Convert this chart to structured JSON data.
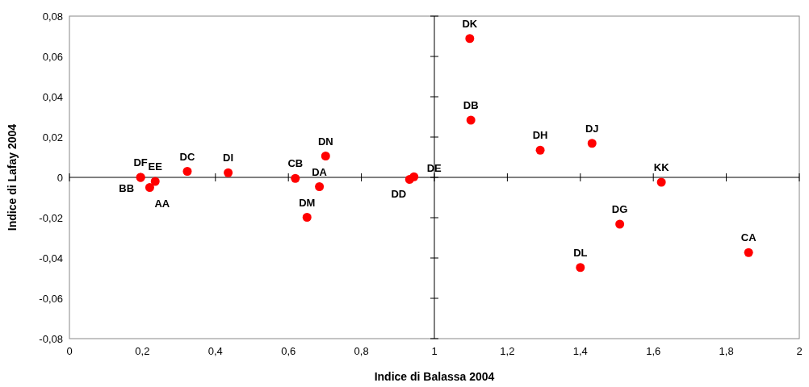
{
  "chart_data": {
    "type": "scatter",
    "xlabel": "Indice di Balassa 2004",
    "ylabel": "Indice di Lafay 2004",
    "xlim": [
      0,
      2
    ],
    "ylim": [
      -0.08,
      0.08
    ],
    "xticks": [
      0,
      {
        "value": 0.2,
        "label": "0,2"
      },
      {
        "value": 0.4,
        "label": "0,4"
      },
      {
        "value": 0.6,
        "label": "0,6"
      },
      {
        "value": 0.8,
        "label": "0,8"
      },
      1,
      {
        "value": 1.2,
        "label": "1,2"
      },
      {
        "value": 1.4,
        "label": "1,4"
      },
      {
        "value": 1.6,
        "label": "1,6"
      },
      {
        "value": 1.8,
        "label": "1,8"
      },
      2
    ],
    "yticks": [
      {
        "value": -0.08,
        "label": "-0,08"
      },
      {
        "value": -0.06,
        "label": "-0,06"
      },
      {
        "value": -0.04,
        "label": "-0,04"
      },
      {
        "value": -0.02,
        "label": "-0,02"
      },
      0,
      {
        "value": 0.02,
        "label": "0,02"
      },
      {
        "value": 0.04,
        "label": "0,04"
      },
      {
        "value": 0.06,
        "label": "0,06"
      },
      {
        "value": 0.08,
        "label": "0,08"
      }
    ],
    "grid": false,
    "marker": "circle",
    "ref_lines": [
      {
        "axis": "x",
        "value": 1,
        "color": "#000000"
      },
      {
        "axis": "y",
        "value": 0,
        "color": "#000000"
      }
    ],
    "series": [
      {
        "color": "#ff0000",
        "x": [
          0.195,
          0.195,
          0.235,
          0.22,
          0.323,
          0.435,
          0.619,
          0.685,
          0.651,
          0.702,
          0.932,
          0.944,
          1.097,
          1.1,
          1.29,
          1.432,
          1.622,
          1.508,
          1.4,
          1.861
        ],
        "values": [
          0,
          0,
          -0.002,
          -0.005,
          0.003,
          0.0023,
          -0.0005,
          -0.0046,
          -0.0198,
          0.0106,
          -0.001,
          0.0003,
          0.0689,
          0.0284,
          0.0135,
          0.0169,
          -0.0024,
          -0.0232,
          -0.0447,
          -0.0373
        ]
      }
    ],
    "annotations": [
      {
        "text": "DF",
        "x": 0.195,
        "y": 0
      },
      {
        "text": "BB",
        "x": 0.195,
        "y": 0
      },
      {
        "text": "EE",
        "x": 0.235,
        "y": -0.002
      },
      {
        "text": "AA",
        "x": 0.22,
        "y": -0.005
      },
      {
        "text": "DC",
        "x": 0.323,
        "y": 0.003
      },
      {
        "text": "DI",
        "x": 0.435,
        "y": 0.0023
      },
      {
        "text": "CB",
        "x": 0.619,
        "y": -0.0005
      },
      {
        "text": "DA",
        "x": 0.685,
        "y": -0.0046
      },
      {
        "text": "DM",
        "x": 0.651,
        "y": -0.0198
      },
      {
        "text": "DN",
        "x": 0.702,
        "y": 0.0106
      },
      {
        "text": "DD",
        "x": 0.932,
        "y": -0.001
      },
      {
        "text": "DE",
        "x": 0.944,
        "y": 0.0003
      },
      {
        "text": "DK",
        "x": 1.097,
        "y": 0.0689
      },
      {
        "text": "DB",
        "x": 1.1,
        "y": 0.0284
      },
      {
        "text": "DH",
        "x": 1.29,
        "y": 0.0135
      },
      {
        "text": "DJ",
        "x": 1.432,
        "y": 0.0169
      },
      {
        "text": "KK",
        "x": 1.622,
        "y": -0.0024
      },
      {
        "text": "DG",
        "x": 1.508,
        "y": -0.0232
      },
      {
        "text": "DL",
        "x": 1.4,
        "y": -0.0447
      },
      {
        "text": "CA",
        "x": 1.861,
        "y": -0.0373
      }
    ]
  }
}
